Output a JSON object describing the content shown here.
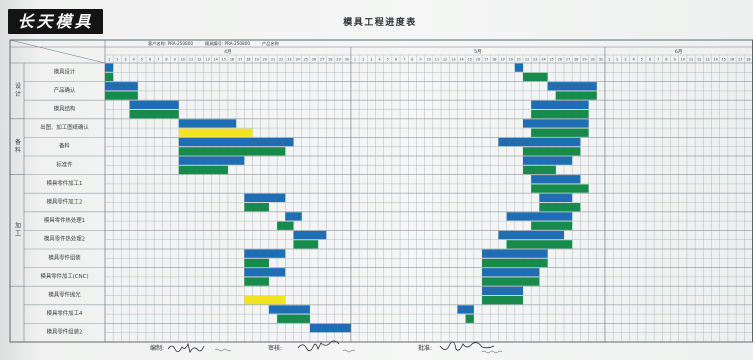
{
  "header": {
    "logo_text": "长天模具",
    "info": [
      "客户名称: PRA-250800",
      "模具编号: PRA-250800",
      "产品名称"
    ]
  },
  "footer": {
    "prepared_label": "编制:",
    "reviewed_label": "审核:",
    "approved_label": "批准:"
  },
  "chart_data": {
    "type": "bar",
    "orientation": "horizontal",
    "title": "模具工程进度表",
    "months": [
      {
        "label": "4月",
        "from": "4-1",
        "to": "4-30"
      },
      {
        "label": "5月",
        "from": "5-1",
        "to": "5-31"
      },
      {
        "label": "6月",
        "from": "6-1",
        "to": "6-18"
      }
    ],
    "x_ticks": [
      "1",
      "2",
      "3",
      "4",
      "5",
      "6",
      "7",
      "8",
      "9",
      "10",
      "11",
      "12",
      "13",
      "14",
      "15",
      "16",
      "17",
      "18",
      "19",
      "20",
      "21",
      "22",
      "23",
      "24",
      "25",
      "26",
      "27",
      "28",
      "29",
      "30",
      "1",
      "2",
      "3",
      "4",
      "5",
      "6",
      "7",
      "8",
      "9",
      "10",
      "11",
      "12",
      "13",
      "14",
      "15",
      "16",
      "17",
      "18",
      "19",
      "20",
      "21",
      "22",
      "23",
      "24",
      "25",
      "26",
      "27",
      "28",
      "29",
      "30",
      "31",
      "1",
      "2",
      "3",
      "4",
      "5",
      "6",
      "7",
      "8",
      "9",
      "10",
      "11",
      "12",
      "13",
      "14",
      "15",
      "16",
      "17",
      "18"
    ],
    "series": [
      {
        "color": "#1f6db3"
      },
      {
        "color": "#178a4c"
      }
    ],
    "groups": [
      {
        "label": "设计",
        "tasks": [
          {
            "label": "模具设计",
            "ranges": [
              [
                [
                  "4-1",
                  "4-1"
                ],
                [
                  "5-21",
                  "5-21"
                ]
              ],
              [
                [
                  "4-1",
                  "4-1"
                ],
                [
                  "5-22",
                  "5-24"
                ]
              ]
            ]
          },
          {
            "label": "产品确认",
            "ranges": [
              [
                [
                  "4-1",
                  "4-4"
                ],
                [
                  "5-25",
                  "5-30"
                ]
              ],
              [
                [
                  "4-1",
                  "4-4"
                ],
                [
                  "5-26",
                  "5-30"
                ]
              ]
            ]
          },
          {
            "label": "模具结构",
            "ranges": [
              [
                [
                  "4-4",
                  "4-9"
                ],
                [
                  "5-23",
                  "5-29"
                ]
              ],
              [
                [
                  "4-4",
                  "4-9"
                ],
                [
                  "5-23",
                  "5-29"
                ]
              ]
            ]
          }
        ]
      },
      {
        "label": "备料",
        "tasks": [
          {
            "label": "出图、加工图纸确认",
            "ranges": [
              [
                [
                  "4-10",
                  "4-16"
                ],
                [
                  "5-22",
                  "5-29"
                ]
              ],
              [
                [
                  "4-10",
                  "4-18",
                  "#f2e423"
                ],
                [
                  "5-23",
                  "5-29"
                ]
              ]
            ]
          },
          {
            "label": "备料",
            "ranges": [
              [
                [
                  "4-10",
                  "4-23"
                ],
                [
                  "5-19",
                  "5-28"
                ]
              ],
              [
                [
                  "4-10",
                  "4-22"
                ],
                [
                  "5-22",
                  "5-28"
                ]
              ]
            ]
          },
          {
            "label": "标准件",
            "ranges": [
              [
                [
                  "4-10",
                  "4-17"
                ],
                [
                  "5-22",
                  "5-27"
                ]
              ],
              [
                [
                  "4-10",
                  "4-15"
                ],
                [
                  "5-22",
                  "5-25"
                ]
              ]
            ]
          }
        ]
      },
      {
        "label": "加工",
        "tasks": [
          {
            "label": "模具零件加工1",
            "ranges": [
              [
                [
                  "5-23",
                  "5-28"
                ]
              ],
              [
                [
                  "5-23",
                  "5-29"
                ]
              ]
            ]
          },
          {
            "label": "模具零件加工2",
            "ranges": [
              [
                [
                  "4-18",
                  "4-22"
                ],
                [
                  "5-24",
                  "5-27"
                ]
              ],
              [
                [
                  "4-18",
                  "4-20"
                ],
                [
                  "5-24",
                  "5-28"
                ]
              ]
            ]
          },
          {
            "label": "模具零件热处理1",
            "ranges": [
              [
                [
                  "4-23",
                  "4-24"
                ],
                [
                  "5-20",
                  "5-27"
                ]
              ],
              [
                [
                  "4-22",
                  "4-23"
                ],
                [
                  "5-23",
                  "5-27"
                ]
              ]
            ]
          },
          {
            "label": "模具零件热处理2",
            "ranges": [
              [
                [
                  "4-24",
                  "4-27"
                ],
                [
                  "5-19",
                  "5-26"
                ]
              ],
              [
                [
                  "4-24",
                  "4-26"
                ],
                [
                  "5-20",
                  "5-27"
                ]
              ]
            ]
          },
          {
            "label": "模具零件组装",
            "ranges": [
              [
                [
                  "4-18",
                  "4-22"
                ],
                [
                  "5-17",
                  "5-24"
                ]
              ],
              [
                [
                  "4-18",
                  "4-20"
                ],
                [
                  "5-17",
                  "5-24"
                ]
              ]
            ]
          },
          {
            "label": "模具零件加工(CNC)",
            "ranges": [
              [
                [
                  "4-18",
                  "4-22"
                ],
                [
                  "5-17",
                  "5-23"
                ]
              ],
              [
                [
                  "4-18",
                  "4-20"
                ],
                [
                  "5-17",
                  "5-23"
                ]
              ]
            ]
          }
        ]
      },
      {
        "label": "",
        "tasks": [
          {
            "label": "模具零件抛光",
            "ranges": [
              [
                [
                  "5-17",
                  "5-21"
                ]
              ],
              [
                [
                  "4-18",
                  "4-22",
                  "#f2e423"
                ],
                [
                  "5-17",
                  "5-21"
                ]
              ]
            ]
          },
          {
            "label": "模具零件加工4",
            "ranges": [
              [
                [
                  "4-21",
                  "4-25"
                ],
                [
                  "5-14",
                  "5-15"
                ]
              ],
              [
                [
                  "4-22",
                  "4-25"
                ],
                [
                  "5-15",
                  "5-15"
                ]
              ]
            ]
          },
          {
            "label": "模具零件组装2",
            "ranges": [
              [
                [
                  "4-26",
                  "4-30"
                ]
              ],
              []
            ]
          }
        ]
      }
    ]
  }
}
